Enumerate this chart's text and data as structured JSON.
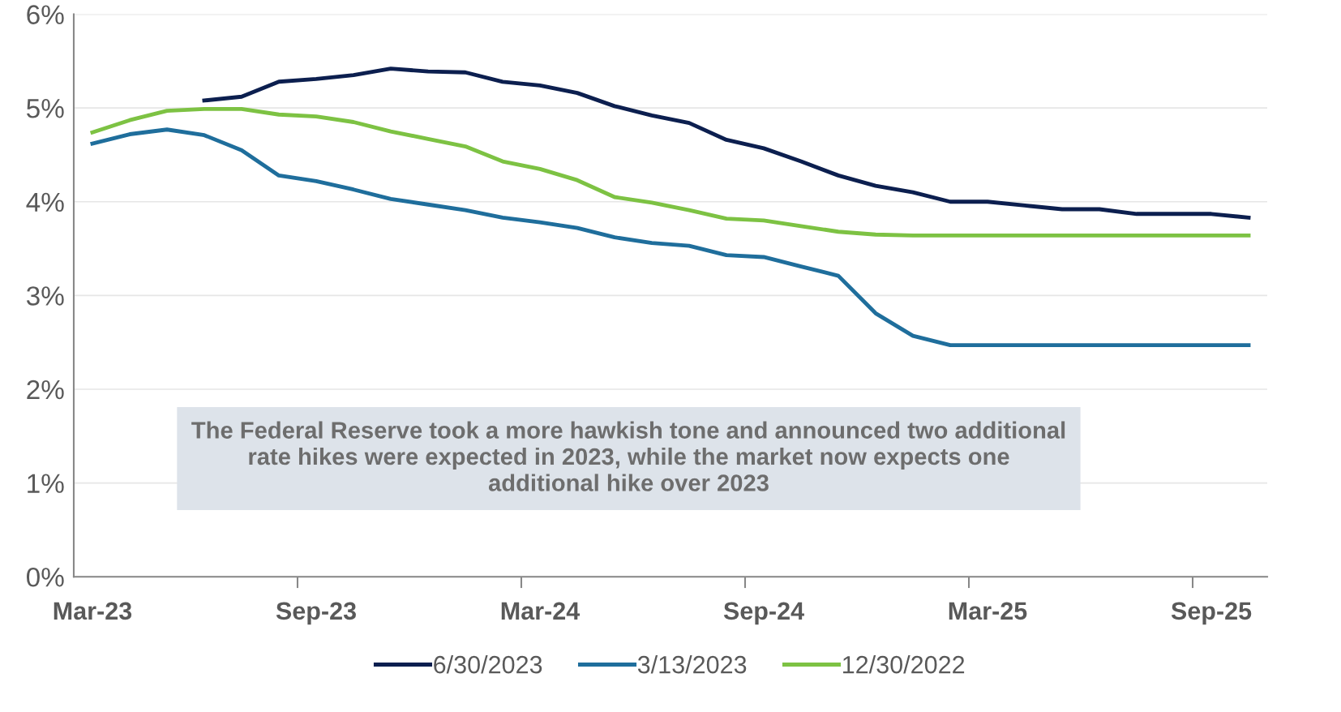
{
  "chart_data": {
    "type": "line",
    "categories": [
      "Mar-23",
      null,
      null,
      null,
      null,
      null,
      "Sep-23",
      null,
      null,
      null,
      null,
      null,
      "Mar-24",
      null,
      null,
      null,
      null,
      null,
      "Sep-24",
      null,
      null,
      null,
      null,
      null,
      "Mar-25",
      null,
      null,
      null,
      null,
      null,
      "Sep-25",
      null
    ],
    "series": [
      {
        "name": "6/30/2023",
        "color": "#0c1f4f",
        "values": [
          null,
          null,
          null,
          5.08,
          5.12,
          5.28,
          5.31,
          5.35,
          5.42,
          5.39,
          5.38,
          5.28,
          5.24,
          5.16,
          5.02,
          4.92,
          4.84,
          4.66,
          4.57,
          4.43,
          4.28,
          4.17,
          4.1,
          4.0,
          4.0,
          3.96,
          3.92,
          3.92,
          3.87,
          3.87,
          3.87,
          3.83
        ]
      },
      {
        "name": "3/13/2023",
        "color": "#1f6e9c",
        "values": [
          4.62,
          4.72,
          4.77,
          4.71,
          4.55,
          4.28,
          4.22,
          4.13,
          4.03,
          3.97,
          3.91,
          3.83,
          3.78,
          3.72,
          3.62,
          3.56,
          3.53,
          3.43,
          3.41,
          3.31,
          3.21,
          2.81,
          2.57,
          2.47,
          2.47,
          2.47,
          2.47,
          2.47,
          2.47,
          2.47,
          2.47,
          2.47
        ]
      },
      {
        "name": "12/30/2022",
        "color": "#7dc243",
        "values": [
          4.74,
          4.87,
          4.97,
          4.99,
          4.99,
          4.93,
          4.91,
          4.85,
          4.75,
          4.67,
          4.59,
          4.43,
          4.35,
          4.23,
          4.05,
          3.99,
          3.91,
          3.82,
          3.8,
          3.74,
          3.68,
          3.65,
          3.64,
          3.64,
          3.64,
          3.64,
          3.64,
          3.64,
          3.64,
          3.64,
          3.64,
          3.64
        ]
      }
    ],
    "ylim": [
      0,
      6
    ],
    "yticks": [
      {
        "value": 0,
        "label": "0%"
      },
      {
        "value": 1,
        "label": "1%"
      },
      {
        "value": 2,
        "label": "2%"
      },
      {
        "value": 3,
        "label": "3%"
      },
      {
        "value": 4,
        "label": "4%"
      },
      {
        "value": 5,
        "label": "5%"
      },
      {
        "value": 6,
        "label": "6%"
      }
    ],
    "grid": "y",
    "legend": "bottom",
    "annotations": [
      "The Federal Reserve took a more hawkish tone and announced two additional rate hikes were expected in 2023, while the market now expects one additional hike over 2023"
    ]
  }
}
